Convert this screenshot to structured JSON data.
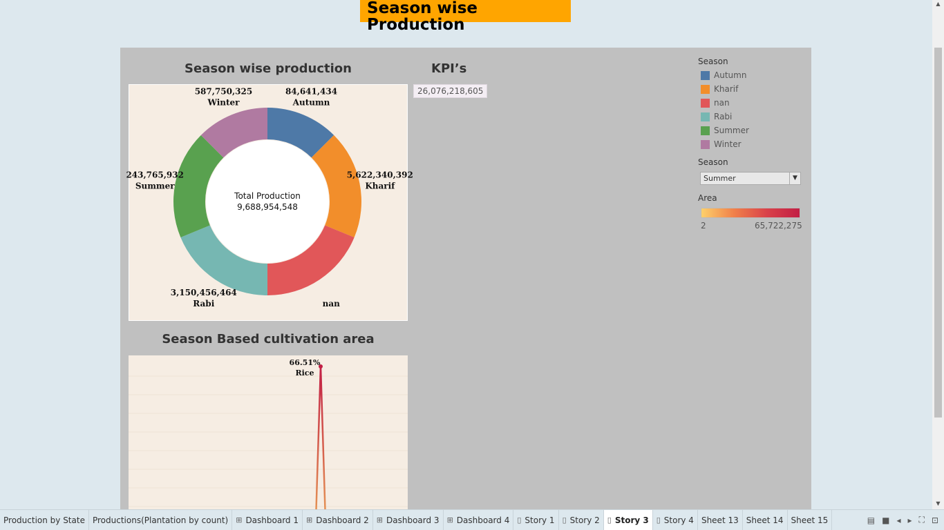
{
  "story": {
    "title": "Season wise Production"
  },
  "donut": {
    "title": "Season wise production",
    "center_label": "Total Production",
    "center_value": "9,688,954,548"
  },
  "kpi": {
    "title": "KPI’s",
    "value": "26,076,218,605"
  },
  "area_chart": {
    "title": "Season Based cultivation area"
  },
  "legend": {
    "title": "Season",
    "items": [
      {
        "label": "Autumn",
        "color": "#4e79a7"
      },
      {
        "label": "Kharif",
        "color": "#f28e2b"
      },
      {
        "label": "nan",
        "color": "#e15759"
      },
      {
        "label": "Rabi",
        "color": "#76b7b2"
      },
      {
        "label": "Summer",
        "color": "#59a14f"
      },
      {
        "label": "Winter",
        "color": "#b07aa1"
      }
    ]
  },
  "filter": {
    "title": "Season",
    "selected": "Summer"
  },
  "area_legend": {
    "title": "Area",
    "min": "2",
    "max": "65,722,275"
  },
  "chart_data": [
    {
      "type": "pie",
      "title": "Season wise production",
      "slices": [
        {
          "label": "Autumn",
          "value": 84641434,
          "value_label": "84,641,434",
          "color": "#4e79a7",
          "share": 0.125
        },
        {
          "label": "Kharif",
          "value": 5622340392,
          "value_label": "5,622,340,392",
          "color": "#f28e2b",
          "share": 0.1875
        },
        {
          "label": "nan",
          "value": null,
          "value_label": "",
          "color": "#e15759",
          "share": 0.1875
        },
        {
          "label": "Rabi",
          "value": 3150456464,
          "value_label": "3,150,456,464",
          "color": "#76b7b2",
          "share": 0.1875
        },
        {
          "label": "Summer",
          "value": 243765932,
          "value_label": "243,765,932",
          "color": "#59a14f",
          "share": 0.1875
        },
        {
          "label": "Winter",
          "value": 587750325,
          "value_label": "587,750,325",
          "color": "#b07aa1",
          "share": 0.125
        }
      ]
    },
    {
      "type": "line",
      "title": "Season Based cultivation area",
      "points": [
        {
          "label": "Rice",
          "value_label": "66.51%",
          "value": 66.51
        }
      ]
    }
  ],
  "tabs": [
    {
      "label": "Production by State",
      "icon": ""
    },
    {
      "label": "Productions(Plantation by count)",
      "icon": ""
    },
    {
      "label": "Dashboard 1",
      "icon": "dashboard"
    },
    {
      "label": "Dashboard 2",
      "icon": "dashboard"
    },
    {
      "label": "Dashboard 3",
      "icon": "dashboard"
    },
    {
      "label": "Dashboard 4",
      "icon": "dashboard"
    },
    {
      "label": "Story 1",
      "icon": "story"
    },
    {
      "label": "Story 2",
      "icon": "story"
    },
    {
      "label": "Story 3",
      "icon": "story",
      "active": true
    },
    {
      "label": "Story 4",
      "icon": "story"
    },
    {
      "label": "Sheet 13",
      "icon": ""
    },
    {
      "label": "Sheet 14",
      "icon": ""
    },
    {
      "label": "Sheet 15",
      "icon": ""
    }
  ]
}
